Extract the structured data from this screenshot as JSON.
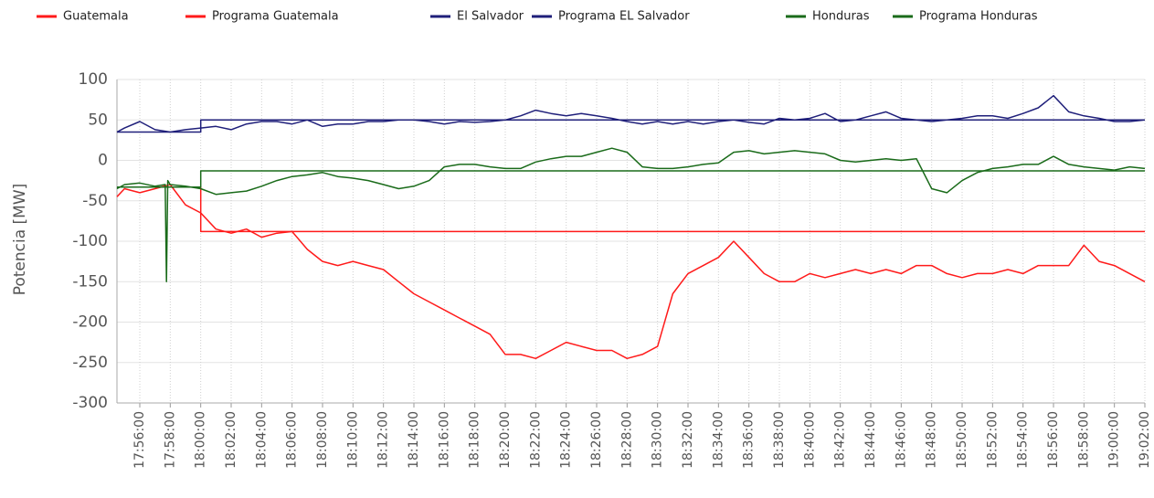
{
  "chart_data": {
    "type": "line",
    "y_label": "Potencia [MW]",
    "xlim": [
      "17:54:30",
      "19:02:00"
    ],
    "xticks": [
      "17:56:00",
      "17:58:00",
      "18:00:00",
      "18:02:00",
      "18:04:00",
      "18:06:00",
      "18:08:00",
      "18:10:00",
      "18:12:00",
      "18:14:00",
      "18:16:00",
      "18:18:00",
      "18:20:00",
      "18:22:00",
      "18:24:00",
      "18:26:00",
      "18:28:00",
      "18:30:00",
      "18:32:00",
      "18:34:00",
      "18:36:00",
      "18:38:00",
      "18:40:00",
      "18:42:00",
      "18:44:00",
      "18:46:00",
      "18:48:00",
      "18:50:00",
      "18:52:00",
      "18:54:00",
      "18:56:00",
      "18:58:00",
      "19:00:00",
      "19:02:00"
    ],
    "ylim": [
      -300,
      100
    ],
    "yticks": [
      -300,
      -250,
      -200,
      -150,
      -100,
      -50,
      0,
      50,
      100
    ],
    "grid": true,
    "legend": "top",
    "series": [
      {
        "name": "Guatemala",
        "color": "#ff1a1a",
        "x": [
          "17:54:30",
          "17:55:00",
          "17:56:00",
          "17:57:00",
          "17:58:00",
          "17:59:00",
          "18:00:00",
          "18:01:00",
          "18:02:00",
          "18:03:00",
          "18:04:00",
          "18:05:00",
          "18:06:00",
          "18:07:00",
          "18:08:00",
          "18:09:00",
          "18:10:00",
          "18:11:00",
          "18:12:00",
          "18:13:00",
          "18:14:00",
          "18:15:00",
          "18:16:00",
          "18:17:00",
          "18:18:00",
          "18:19:00",
          "18:20:00",
          "18:21:00",
          "18:22:00",
          "18:23:00",
          "18:24:00",
          "18:25:00",
          "18:26:00",
          "18:27:00",
          "18:28:00",
          "18:29:00",
          "18:30:00",
          "18:31:00",
          "18:32:00",
          "18:33:00",
          "18:34:00",
          "18:35:00",
          "18:36:00",
          "18:37:00",
          "18:38:00",
          "18:39:00",
          "18:40:00",
          "18:41:00",
          "18:42:00",
          "18:43:00",
          "18:44:00",
          "18:45:00",
          "18:46:00",
          "18:47:00",
          "18:48:00",
          "18:49:00",
          "18:50:00",
          "18:51:00",
          "18:52:00",
          "18:53:00",
          "18:54:00",
          "18:55:00",
          "18:56:00",
          "18:57:00",
          "18:58:00",
          "18:59:00",
          "19:00:00",
          "19:01:00",
          "19:02:00"
        ],
        "values": [
          -45,
          -35,
          -40,
          -35,
          -30,
          -55,
          -65,
          -85,
          -90,
          -85,
          -95,
          -90,
          -88,
          -110,
          -125,
          -130,
          -125,
          -130,
          -135,
          -150,
          -165,
          -175,
          -185,
          -195,
          -205,
          -215,
          -240,
          -240,
          -245,
          -235,
          -225,
          -230,
          -235,
          -235,
          -245,
          -240,
          -230,
          -165,
          -140,
          -130,
          -120,
          -100,
          -120,
          -140,
          -150,
          -150,
          -140,
          -145,
          -140,
          -135,
          -140,
          -135,
          -140,
          -130,
          -130,
          -140,
          -145,
          -140,
          -140,
          -135,
          -140,
          -130,
          -130,
          -130,
          -105,
          -125,
          -130,
          -140,
          -150
        ]
      },
      {
        "name": "Programa Guatemala",
        "color": "#ff1a1a",
        "x": [
          "17:54:30",
          "18:00:00",
          "18:00:00",
          "19:02:00"
        ],
        "values": [
          -33,
          -33,
          -88,
          -88
        ]
      },
      {
        "name": "El Salvador",
        "color": "#1f1f7a",
        "x": [
          "17:54:30",
          "17:55:00",
          "17:56:00",
          "17:57:00",
          "17:58:00",
          "17:59:00",
          "18:00:00",
          "18:01:00",
          "18:02:00",
          "18:03:00",
          "18:04:00",
          "18:05:00",
          "18:06:00",
          "18:07:00",
          "18:08:00",
          "18:09:00",
          "18:10:00",
          "18:11:00",
          "18:12:00",
          "18:13:00",
          "18:14:00",
          "18:15:00",
          "18:16:00",
          "18:17:00",
          "18:18:00",
          "18:19:00",
          "18:20:00",
          "18:21:00",
          "18:22:00",
          "18:23:00",
          "18:24:00",
          "18:25:00",
          "18:26:00",
          "18:27:00",
          "18:28:00",
          "18:29:00",
          "18:30:00",
          "18:31:00",
          "18:32:00",
          "18:33:00",
          "18:34:00",
          "18:35:00",
          "18:36:00",
          "18:37:00",
          "18:38:00",
          "18:39:00",
          "18:40:00",
          "18:41:00",
          "18:42:00",
          "18:43:00",
          "18:44:00",
          "18:45:00",
          "18:46:00",
          "18:47:00",
          "18:48:00",
          "18:49:00",
          "18:50:00",
          "18:51:00",
          "18:52:00",
          "18:53:00",
          "18:54:00",
          "18:55:00",
          "18:56:00",
          "18:57:00",
          "18:58:00",
          "18:59:00",
          "19:00:00",
          "19:01:00",
          "19:02:00"
        ],
        "values": [
          35,
          40,
          48,
          38,
          35,
          38,
          40,
          42,
          38,
          45,
          48,
          48,
          45,
          50,
          42,
          45,
          45,
          48,
          48,
          50,
          50,
          48,
          45,
          48,
          47,
          48,
          50,
          55,
          62,
          58,
          55,
          58,
          55,
          52,
          48,
          45,
          48,
          45,
          48,
          45,
          48,
          50,
          47,
          45,
          52,
          50,
          52,
          58,
          48,
          50,
          55,
          60,
          52,
          50,
          48,
          50,
          52,
          55,
          55,
          52,
          58,
          65,
          80,
          60,
          55,
          52,
          48,
          48,
          50
        ]
      },
      {
        "name": "Programa EL Salvador",
        "color": "#1f1f7a",
        "x": [
          "17:54:30",
          "18:00:00",
          "18:00:00",
          "19:02:00"
        ],
        "values": [
          35,
          35,
          50,
          50
        ]
      },
      {
        "name": "Honduras",
        "color": "#1a6b1a",
        "x": [
          "17:54:30",
          "17:55:00",
          "17:56:00",
          "17:57:00",
          "17:57:40",
          "17:57:45",
          "17:57:50",
          "17:58:00",
          "17:59:00",
          "18:00:00",
          "18:01:00",
          "18:02:00",
          "18:03:00",
          "18:04:00",
          "18:05:00",
          "18:06:00",
          "18:07:00",
          "18:08:00",
          "18:09:00",
          "18:10:00",
          "18:11:00",
          "18:12:00",
          "18:13:00",
          "18:14:00",
          "18:15:00",
          "18:16:00",
          "18:17:00",
          "18:18:00",
          "18:19:00",
          "18:20:00",
          "18:21:00",
          "18:22:00",
          "18:23:00",
          "18:24:00",
          "18:25:00",
          "18:26:00",
          "18:27:00",
          "18:28:00",
          "18:29:00",
          "18:30:00",
          "18:31:00",
          "18:32:00",
          "18:33:00",
          "18:34:00",
          "18:35:00",
          "18:36:00",
          "18:37:00",
          "18:38:00",
          "18:39:00",
          "18:40:00",
          "18:41:00",
          "18:42:00",
          "18:43:00",
          "18:44:00",
          "18:45:00",
          "18:46:00",
          "18:47:00",
          "18:48:00",
          "18:49:00",
          "18:50:00",
          "18:51:00",
          "18:52:00",
          "18:53:00",
          "18:54:00",
          "18:55:00",
          "18:56:00",
          "18:57:00",
          "18:58:00",
          "18:59:00",
          "19:00:00",
          "19:01:00",
          "19:02:00"
        ],
        "values": [
          -35,
          -30,
          -28,
          -32,
          -30,
          -150,
          -25,
          -30,
          -32,
          -35,
          -42,
          -40,
          -38,
          -32,
          -25,
          -20,
          -18,
          -15,
          -20,
          -22,
          -25,
          -30,
          -35,
          -32,
          -25,
          -8,
          -5,
          -5,
          -8,
          -10,
          -10,
          -2,
          2,
          5,
          5,
          10,
          15,
          10,
          -8,
          -10,
          -10,
          -8,
          -5,
          -3,
          10,
          12,
          8,
          10,
          12,
          10,
          8,
          0,
          -2,
          0,
          2,
          0,
          2,
          -35,
          -40,
          -25,
          -15,
          -10,
          -8,
          -5,
          -5,
          5,
          -5,
          -8,
          -10,
          -12,
          -8,
          -10
        ]
      },
      {
        "name": "Programa Honduras",
        "color": "#1a6b1a",
        "x": [
          "17:54:30",
          "18:00:00",
          "18:00:00",
          "19:02:00"
        ],
        "values": [
          -33,
          -33,
          -13,
          -13
        ]
      }
    ]
  }
}
